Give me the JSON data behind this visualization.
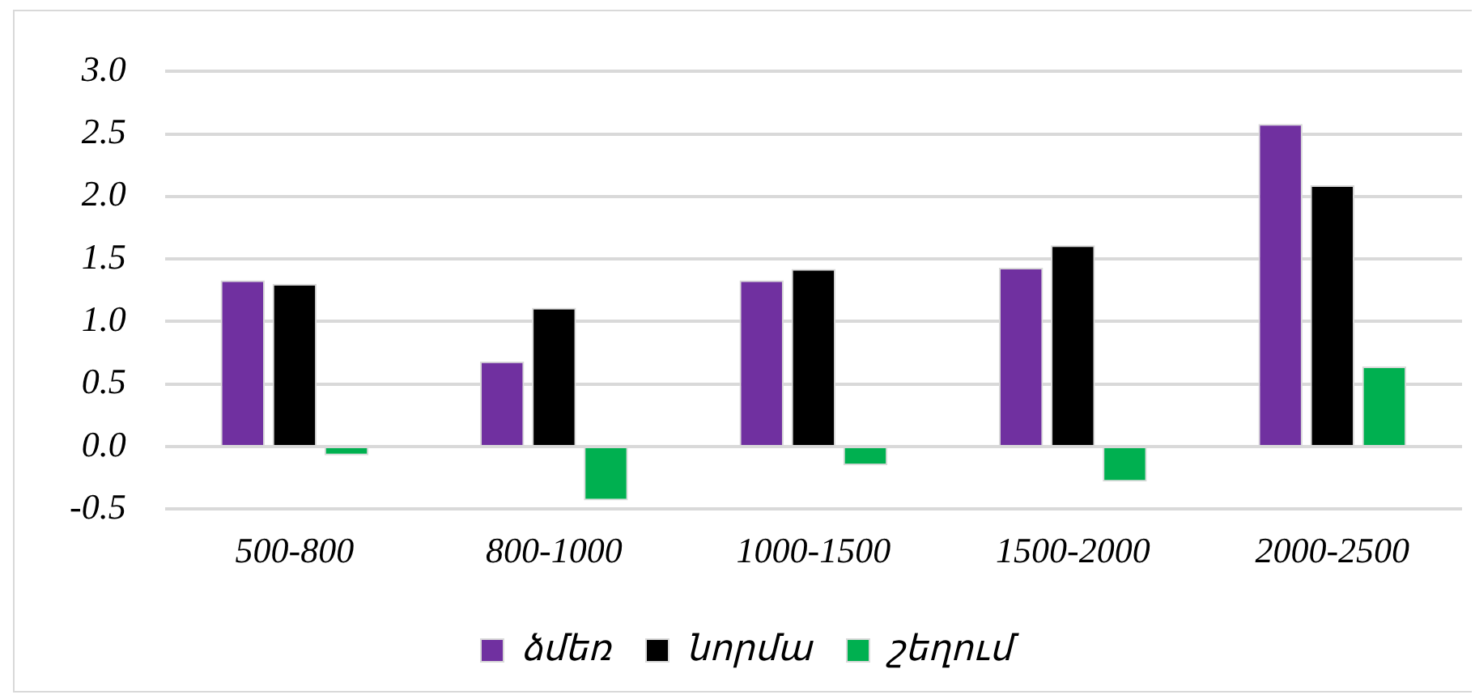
{
  "chart_data": {
    "type": "bar",
    "categories": [
      "500-800",
      "800-1000",
      "1000-1500",
      "1500-2000",
      "2000-2500"
    ],
    "series": [
      {
        "name": "ձմեռ",
        "color": "#7030a0",
        "values": [
          1.33,
          0.68,
          1.33,
          1.43,
          2.58
        ]
      },
      {
        "name": "նորմա",
        "color": "#000000",
        "values": [
          1.3,
          1.11,
          1.42,
          1.61,
          2.09
        ]
      },
      {
        "name": "շեղում",
        "color": "#00b050",
        "values": [
          -0.07,
          -0.43,
          -0.15,
          -0.28,
          0.64
        ]
      }
    ],
    "ylim": [
      -0.5,
      3.0
    ],
    "yticks": [
      {
        "value": -0.5,
        "label": "-0.5"
      },
      {
        "value": 0,
        "label": "0.0"
      },
      {
        "value": 0.5,
        "label": "0.5"
      },
      {
        "value": 1,
        "label": "1.0"
      },
      {
        "value": 1.5,
        "label": "1.5"
      },
      {
        "value": 2,
        "label": "2.0"
      },
      {
        "value": 2.5,
        "label": "2.5"
      },
      {
        "value": 3,
        "label": "3.0"
      }
    ],
    "grid": "y",
    "legend": "bottom"
  }
}
